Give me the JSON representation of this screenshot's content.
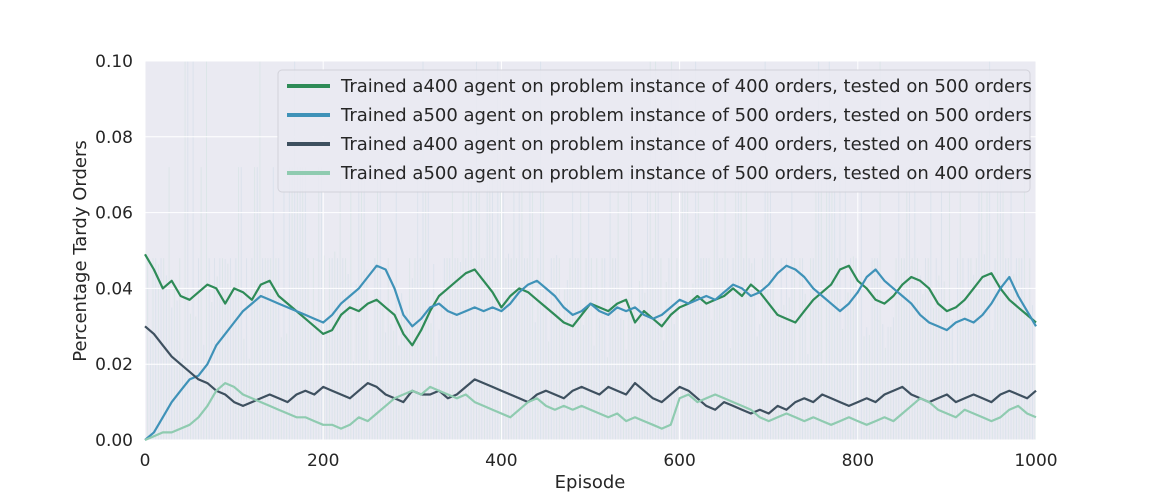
{
  "chart_data": {
    "type": "line",
    "title": "",
    "xlabel": "Episode",
    "ylabel": "Percentage Tardy Orders",
    "xlim": [
      0,
      1000
    ],
    "ylim": [
      0,
      0.1
    ],
    "xticks": [
      0,
      200,
      400,
      600,
      800,
      1000
    ],
    "yticks": [
      0,
      0.02,
      0.04,
      0.06,
      0.08,
      0.1
    ],
    "xtick_labels": [
      "0",
      "200",
      "400",
      "600",
      "800",
      "1000"
    ],
    "ytick_labels": [
      "0.00",
      "0.02",
      "0.04",
      "0.06",
      "0.08",
      "0.10"
    ],
    "grid": true,
    "legend_position": "top-right",
    "background_color": "#EAEAF2",
    "raw_noise_note": "",
    "series": [
      {
        "name": "Trained a400 agent on problem instance of 400 orders, tested on 500 orders",
        "color": "#2E8B57",
        "x": [
          0,
          10,
          20,
          30,
          40,
          50,
          60,
          70,
          80,
          90,
          100,
          110,
          120,
          130,
          140,
          150,
          160,
          170,
          180,
          190,
          200,
          210,
          220,
          230,
          240,
          250,
          260,
          270,
          280,
          290,
          300,
          310,
          320,
          330,
          340,
          350,
          360,
          370,
          380,
          390,
          400,
          410,
          420,
          430,
          440,
          450,
          460,
          470,
          480,
          490,
          500,
          510,
          520,
          530,
          540,
          550,
          560,
          570,
          580,
          590,
          600,
          610,
          620,
          630,
          640,
          650,
          660,
          670,
          680,
          690,
          700,
          710,
          720,
          730,
          740,
          750,
          760,
          770,
          780,
          790,
          800,
          810,
          820,
          830,
          840,
          850,
          860,
          870,
          880,
          890,
          900,
          910,
          920,
          930,
          940,
          950,
          960,
          970,
          980,
          990,
          1000
        ],
        "values": [
          0.049,
          0.045,
          0.04,
          0.042,
          0.038,
          0.037,
          0.039,
          0.041,
          0.04,
          0.036,
          0.04,
          0.039,
          0.037,
          0.041,
          0.042,
          0.038,
          0.036,
          0.034,
          0.032,
          0.03,
          0.028,
          0.029,
          0.033,
          0.035,
          0.034,
          0.036,
          0.037,
          0.035,
          0.033,
          0.028,
          0.025,
          0.029,
          0.034,
          0.038,
          0.04,
          0.042,
          0.044,
          0.045,
          0.042,
          0.039,
          0.035,
          0.038,
          0.04,
          0.039,
          0.037,
          0.035,
          0.033,
          0.031,
          0.03,
          0.033,
          0.036,
          0.035,
          0.034,
          0.036,
          0.037,
          0.031,
          0.034,
          0.032,
          0.03,
          0.033,
          0.035,
          0.036,
          0.038,
          0.036,
          0.037,
          0.038,
          0.04,
          0.038,
          0.041,
          0.039,
          0.036,
          0.033,
          0.032,
          0.031,
          0.034,
          0.037,
          0.039,
          0.041,
          0.045,
          0.046,
          0.042,
          0.04,
          0.037,
          0.036,
          0.038,
          0.041,
          0.043,
          0.042,
          0.04,
          0.036,
          0.034,
          0.035,
          0.037,
          0.04,
          0.043,
          0.044,
          0.04,
          0.037,
          0.035,
          0.033,
          0.031
        ]
      },
      {
        "name": "Trained a500 agent on problem instance of 500 orders, tested on 500 orders",
        "color": "#3F92B8",
        "x": [
          0,
          10,
          20,
          30,
          40,
          50,
          60,
          70,
          80,
          90,
          100,
          110,
          120,
          130,
          140,
          150,
          160,
          170,
          180,
          190,
          200,
          210,
          220,
          230,
          240,
          250,
          260,
          270,
          280,
          290,
          300,
          310,
          320,
          330,
          340,
          350,
          360,
          370,
          380,
          390,
          400,
          410,
          420,
          430,
          440,
          450,
          460,
          470,
          480,
          490,
          500,
          510,
          520,
          530,
          540,
          550,
          560,
          570,
          580,
          590,
          600,
          610,
          620,
          630,
          640,
          650,
          660,
          670,
          680,
          690,
          700,
          710,
          720,
          730,
          740,
          750,
          760,
          770,
          780,
          790,
          800,
          810,
          820,
          830,
          840,
          850,
          860,
          870,
          880,
          890,
          900,
          910,
          920,
          930,
          940,
          950,
          960,
          970,
          980,
          990,
          1000
        ],
        "values": [
          0.0,
          0.002,
          0.006,
          0.01,
          0.013,
          0.016,
          0.017,
          0.02,
          0.025,
          0.028,
          0.031,
          0.034,
          0.036,
          0.038,
          0.037,
          0.036,
          0.035,
          0.034,
          0.033,
          0.032,
          0.031,
          0.033,
          0.036,
          0.038,
          0.04,
          0.043,
          0.046,
          0.045,
          0.04,
          0.033,
          0.03,
          0.032,
          0.035,
          0.036,
          0.034,
          0.033,
          0.034,
          0.035,
          0.034,
          0.035,
          0.034,
          0.036,
          0.039,
          0.041,
          0.042,
          0.04,
          0.038,
          0.035,
          0.033,
          0.034,
          0.036,
          0.034,
          0.033,
          0.035,
          0.034,
          0.035,
          0.033,
          0.032,
          0.033,
          0.035,
          0.037,
          0.036,
          0.037,
          0.038,
          0.037,
          0.039,
          0.041,
          0.04,
          0.038,
          0.039,
          0.041,
          0.044,
          0.046,
          0.045,
          0.043,
          0.04,
          0.038,
          0.036,
          0.034,
          0.036,
          0.039,
          0.043,
          0.045,
          0.042,
          0.04,
          0.038,
          0.036,
          0.033,
          0.031,
          0.03,
          0.029,
          0.031,
          0.032,
          0.031,
          0.033,
          0.036,
          0.04,
          0.043,
          0.038,
          0.034,
          0.03
        ]
      },
      {
        "name": "Trained a400 agent on problem instance of 400 orders, tested on 400 orders",
        "color": "#3E505F",
        "x": [
          0,
          10,
          20,
          30,
          40,
          50,
          60,
          70,
          80,
          90,
          100,
          110,
          120,
          130,
          140,
          150,
          160,
          170,
          180,
          190,
          200,
          210,
          220,
          230,
          240,
          250,
          260,
          270,
          280,
          290,
          300,
          310,
          320,
          330,
          340,
          350,
          360,
          370,
          380,
          390,
          400,
          410,
          420,
          430,
          440,
          450,
          460,
          470,
          480,
          490,
          500,
          510,
          520,
          530,
          540,
          550,
          560,
          570,
          580,
          590,
          600,
          610,
          620,
          630,
          640,
          650,
          660,
          670,
          680,
          690,
          700,
          710,
          720,
          730,
          740,
          750,
          760,
          770,
          780,
          790,
          800,
          810,
          820,
          830,
          840,
          850,
          860,
          870,
          880,
          890,
          900,
          910,
          920,
          930,
          940,
          950,
          960,
          970,
          980,
          990,
          1000
        ],
        "values": [
          0.03,
          0.028,
          0.025,
          0.022,
          0.02,
          0.018,
          0.016,
          0.015,
          0.013,
          0.012,
          0.01,
          0.009,
          0.01,
          0.011,
          0.012,
          0.011,
          0.01,
          0.012,
          0.013,
          0.012,
          0.014,
          0.013,
          0.012,
          0.011,
          0.013,
          0.015,
          0.014,
          0.012,
          0.011,
          0.01,
          0.013,
          0.012,
          0.012,
          0.013,
          0.011,
          0.012,
          0.014,
          0.016,
          0.015,
          0.014,
          0.013,
          0.012,
          0.011,
          0.01,
          0.012,
          0.013,
          0.012,
          0.011,
          0.013,
          0.014,
          0.013,
          0.012,
          0.014,
          0.013,
          0.012,
          0.015,
          0.013,
          0.011,
          0.01,
          0.012,
          0.014,
          0.013,
          0.011,
          0.009,
          0.008,
          0.01,
          0.009,
          0.008,
          0.007,
          0.008,
          0.007,
          0.009,
          0.008,
          0.01,
          0.011,
          0.01,
          0.012,
          0.011,
          0.01,
          0.009,
          0.01,
          0.011,
          0.01,
          0.012,
          0.013,
          0.014,
          0.012,
          0.011,
          0.01,
          0.011,
          0.012,
          0.01,
          0.011,
          0.012,
          0.011,
          0.01,
          0.012,
          0.013,
          0.012,
          0.011,
          0.013
        ]
      },
      {
        "name": "Trained a500 agent on problem instance of 500 orders, tested on 400 orders",
        "color": "#8FCBB0",
        "x": [
          0,
          10,
          20,
          30,
          40,
          50,
          60,
          70,
          80,
          90,
          100,
          110,
          120,
          130,
          140,
          150,
          160,
          170,
          180,
          190,
          200,
          210,
          220,
          230,
          240,
          250,
          260,
          270,
          280,
          290,
          300,
          310,
          320,
          330,
          340,
          350,
          360,
          370,
          380,
          390,
          400,
          410,
          420,
          430,
          440,
          450,
          460,
          470,
          480,
          490,
          500,
          510,
          520,
          530,
          540,
          550,
          560,
          570,
          580,
          590,
          600,
          610,
          620,
          630,
          640,
          650,
          660,
          670,
          680,
          690,
          700,
          710,
          720,
          730,
          740,
          750,
          760,
          770,
          780,
          790,
          800,
          810,
          820,
          830,
          840,
          850,
          860,
          870,
          880,
          890,
          900,
          910,
          920,
          930,
          940,
          950,
          960,
          970,
          980,
          990,
          1000
        ],
        "values": [
          0.0,
          0.001,
          0.002,
          0.002,
          0.003,
          0.004,
          0.006,
          0.009,
          0.013,
          0.015,
          0.014,
          0.012,
          0.011,
          0.01,
          0.009,
          0.008,
          0.007,
          0.006,
          0.006,
          0.005,
          0.004,
          0.004,
          0.003,
          0.004,
          0.006,
          0.005,
          0.007,
          0.009,
          0.011,
          0.012,
          0.013,
          0.012,
          0.014,
          0.013,
          0.012,
          0.011,
          0.012,
          0.01,
          0.009,
          0.008,
          0.007,
          0.006,
          0.008,
          0.01,
          0.011,
          0.009,
          0.008,
          0.009,
          0.008,
          0.009,
          0.008,
          0.007,
          0.006,
          0.007,
          0.005,
          0.006,
          0.005,
          0.004,
          0.003,
          0.004,
          0.011,
          0.012,
          0.01,
          0.011,
          0.012,
          0.011,
          0.01,
          0.009,
          0.008,
          0.006,
          0.005,
          0.006,
          0.007,
          0.006,
          0.005,
          0.006,
          0.005,
          0.004,
          0.005,
          0.006,
          0.005,
          0.004,
          0.005,
          0.006,
          0.005,
          0.007,
          0.009,
          0.011,
          0.01,
          0.008,
          0.007,
          0.006,
          0.008,
          0.007,
          0.006,
          0.005,
          0.006,
          0.008,
          0.009,
          0.007,
          0.006
        ]
      }
    ]
  }
}
